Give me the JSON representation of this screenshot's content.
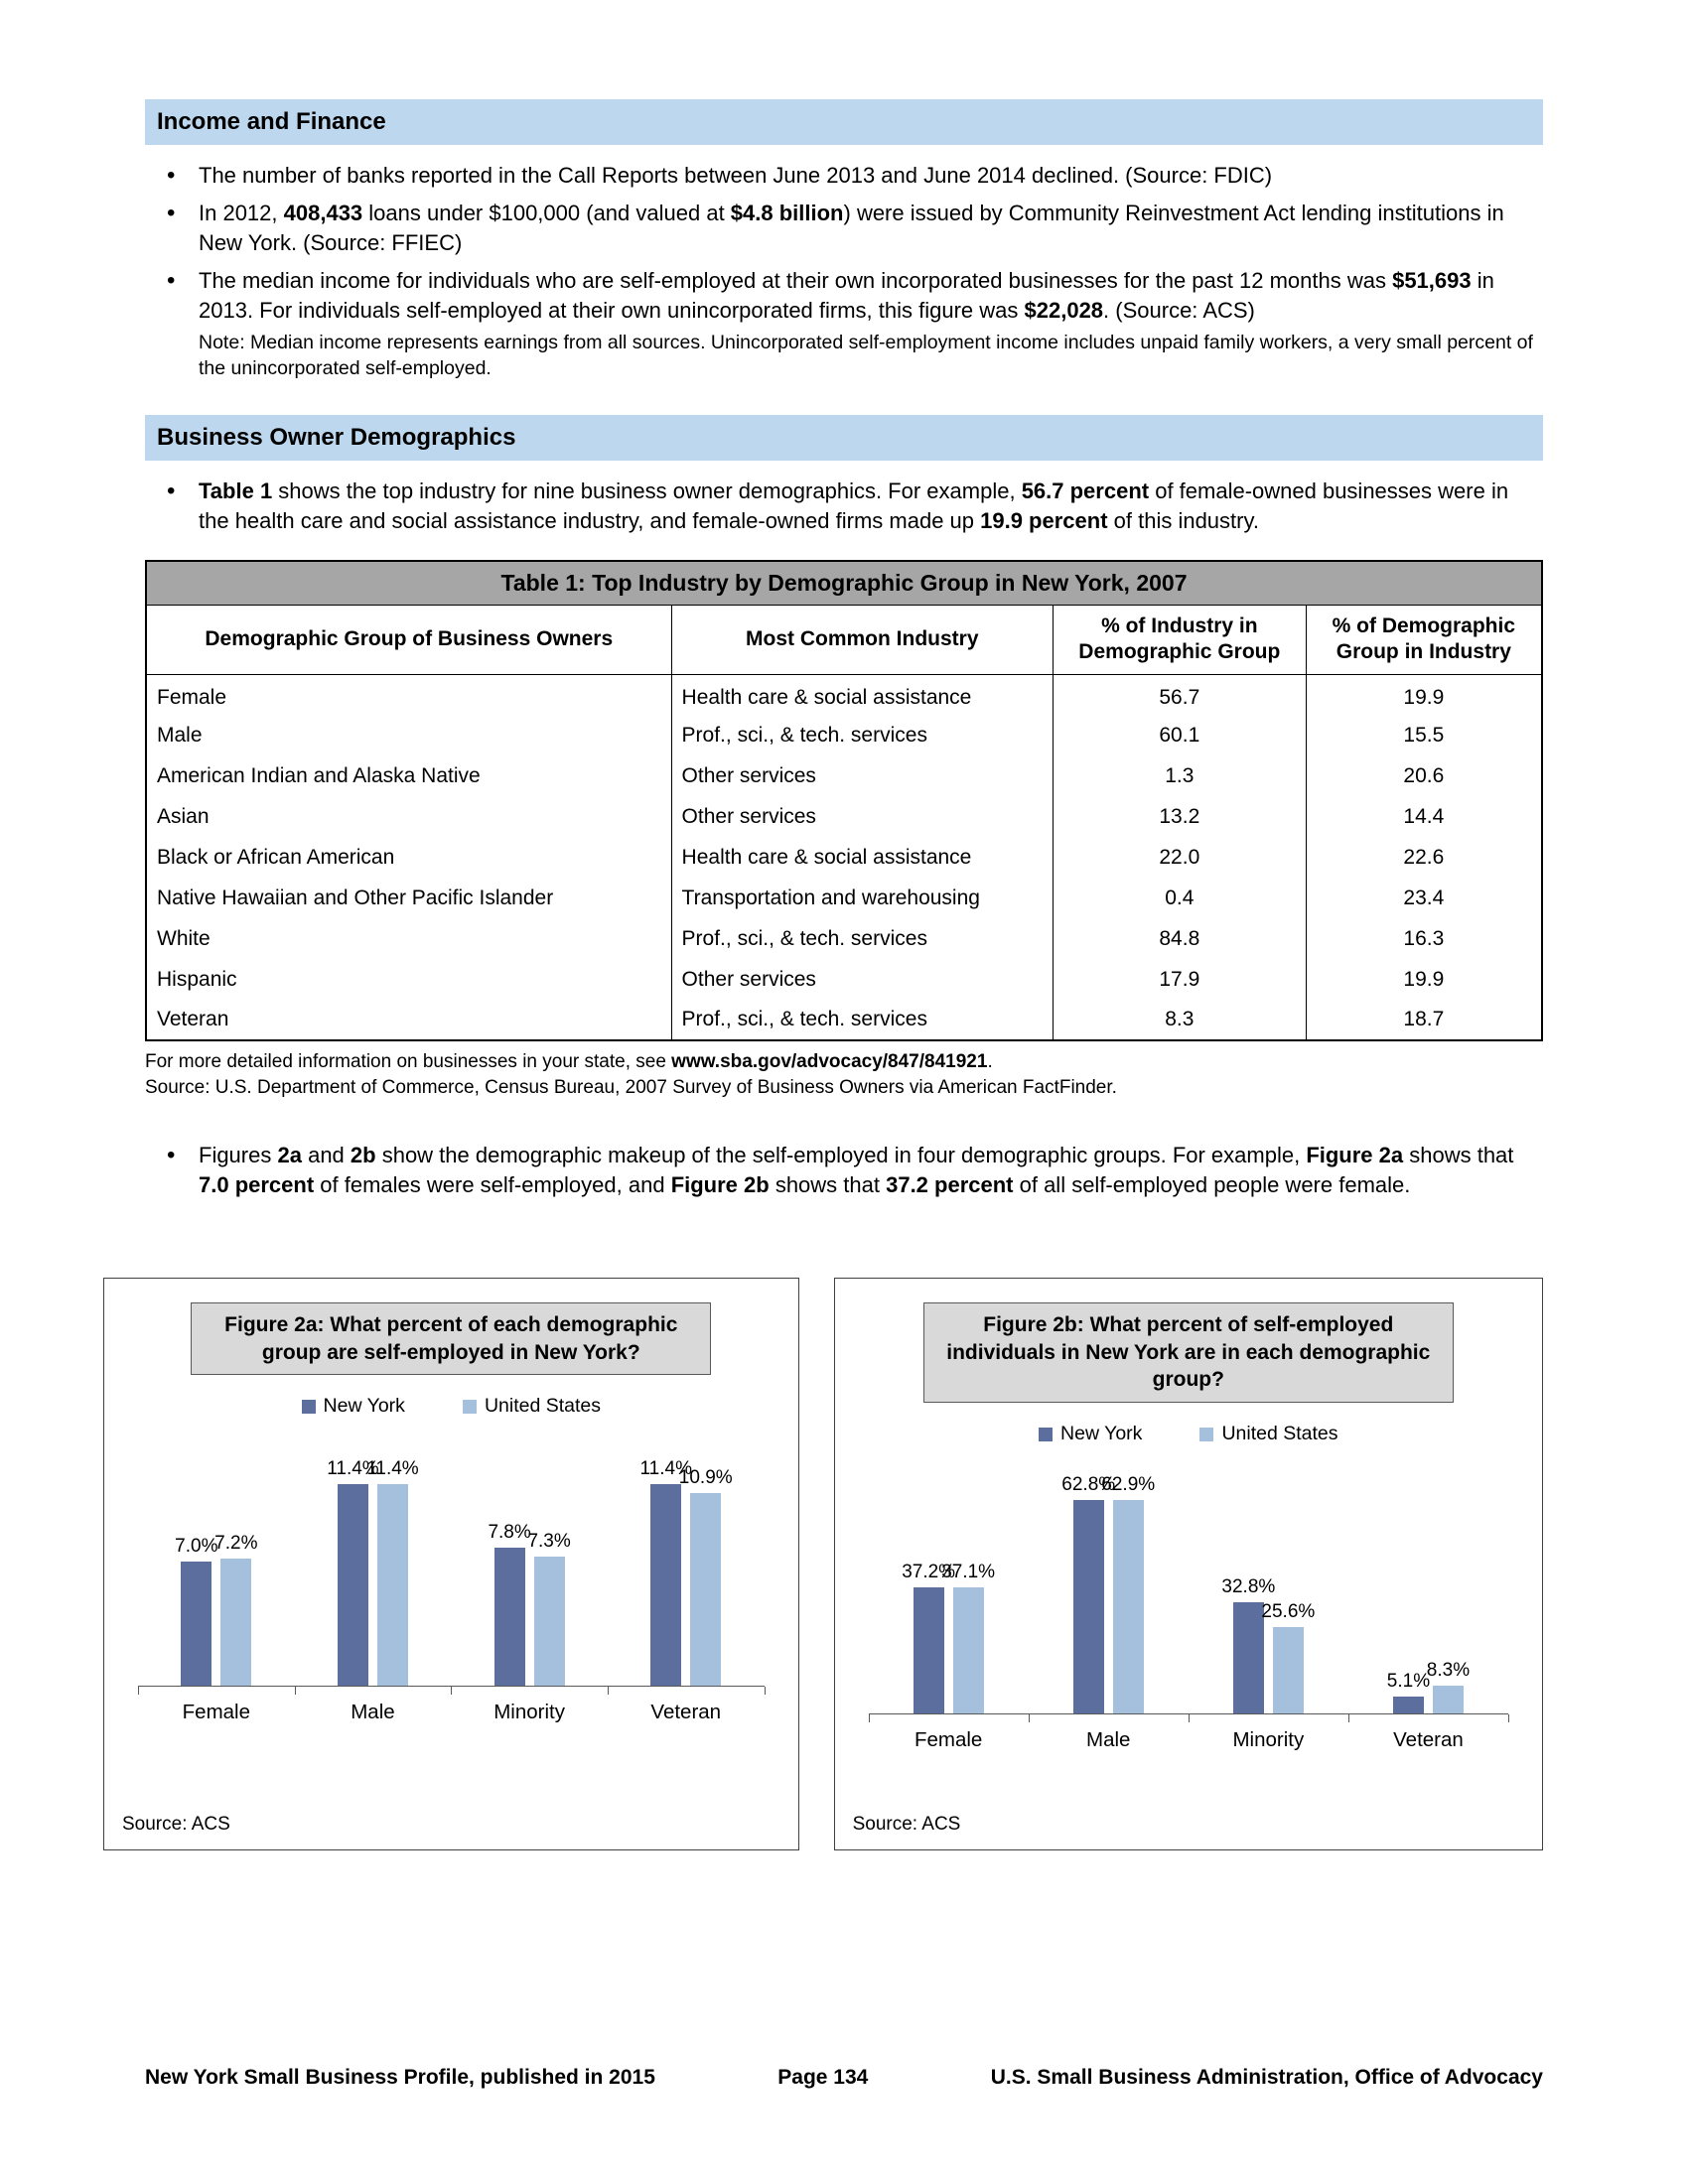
{
  "colors": {
    "section_header_bg": "#bdd7ee",
    "table_title_bg": "#a6a6a6",
    "chart_title_bg": "#d9d9d9",
    "ny_bar": "#5b6e9e",
    "us_bar": "#a4c0dc"
  },
  "sections": {
    "income": {
      "title": "Income and Finance",
      "bullets": [
        [
          {
            "t": "The number of banks reported in the Call Reports between June 2013 and June 2014 declined. (Source: FDIC)"
          }
        ],
        [
          {
            "t": "In 2012, "
          },
          {
            "t": "408,433",
            "b": true
          },
          {
            "t": " loans under $100,000 (and valued at "
          },
          {
            "t": "$4.8 billion",
            "b": true
          },
          {
            "t": ") were issued by Community Reinvestment Act lending institutions in New York. (Source: FFIEC)"
          }
        ],
        [
          {
            "t": "The median income for individuals who are self-employed at their own incorporated businesses for the past 12 months was "
          },
          {
            "t": "$51,693",
            "b": true
          },
          {
            "t": " in 2013. For individuals self-employed at their own unincorporated firms, this figure was "
          },
          {
            "t": "$22,028",
            "b": true
          },
          {
            "t": ".  (Source: ACS)"
          }
        ]
      ],
      "note": "Note: Median income represents earnings from all sources. Unincorporated self-employment income includes unpaid family workers, a very small percent of the unincorporated self-employed."
    },
    "demographics": {
      "title": "Business Owner Demographics",
      "bullets": [
        [
          {
            "t": "Table 1",
            "b": true
          },
          {
            "t": " shows the top industry for nine business owner demographics. For example, "
          },
          {
            "t": "56.7 percent",
            "b": true
          },
          {
            "t": " of female-owned businesses were in the health care and social assistance industry, and female-owned firms made up "
          },
          {
            "t": "19.9 percent",
            "b": true
          },
          {
            "t": " of this industry."
          }
        ]
      ]
    },
    "figures": {
      "bullets": [
        [
          {
            "t": "Figures "
          },
          {
            "t": "2a",
            "b": true
          },
          {
            "t": " and "
          },
          {
            "t": "2b",
            "b": true
          },
          {
            "t": " show the demographic makeup of the self-employed in four demographic groups. For example, "
          },
          {
            "t": "Figure 2a",
            "b": true
          },
          {
            "t": " shows that "
          },
          {
            "t": "7.0 percent",
            "b": true
          },
          {
            "t": " of females were self-employed, and "
          },
          {
            "t": "Figure 2b",
            "b": true
          },
          {
            "t": " shows that "
          },
          {
            "t": "37.2 percent",
            "b": true
          },
          {
            "t": " of all self-employed people were female."
          }
        ]
      ]
    }
  },
  "table1": {
    "title": "Table 1: Top Industry by Demographic Group in New York, 2007",
    "headers": [
      "Demographic Group of Business Owners",
      "Most Common Industry",
      "% of Industry in Demographic Group",
      "% of Demographic Group in Industry"
    ],
    "rows": [
      [
        "Female",
        "Health care & social assistance",
        "56.7",
        "19.9"
      ],
      [
        "Male",
        "Prof., sci., & tech. services",
        "60.1",
        "15.5"
      ],
      [
        "American Indian and Alaska Native",
        "Other services",
        "1.3",
        "20.6"
      ],
      [
        "Asian",
        "Other services",
        "13.2",
        "14.4"
      ],
      [
        "Black or African American",
        "Health care & social assistance",
        "22.0",
        "22.6"
      ],
      [
        "Native Hawaiian and Other Pacific Islander",
        "Transportation and warehousing",
        "0.4",
        "23.4"
      ],
      [
        "White",
        "Prof., sci., & tech. services",
        "84.8",
        "16.3"
      ],
      [
        "Hispanic",
        "Other services",
        "17.9",
        "19.9"
      ],
      [
        "Veteran",
        "Prof., sci., & tech. services",
        "8.3",
        "18.7"
      ]
    ],
    "footnote": [
      {
        "t": "For more detailed information on businesses in your state, see "
      },
      {
        "t": "www.sba.gov/advocacy/847/841921",
        "b": true,
        "link": true
      },
      {
        "t": "."
      }
    ],
    "source": "Source: U.S. Department of Commerce, Census Bureau, 2007 Survey of Business Owners via American FactFinder."
  },
  "chart_data": [
    {
      "id": "fig2a",
      "type": "bar",
      "title": "Figure 2a: What percent of each demographic group are self-employed in New York?",
      "categories": [
        "Female",
        "Male",
        "Minority",
        "Veteran"
      ],
      "series": [
        {
          "name": "New York",
          "color": "#5b6e9e",
          "values": [
            7.0,
            11.4,
            7.8,
            11.4
          ]
        },
        {
          "name": "United States",
          "color": "#a4c0dc",
          "values": [
            7.2,
            11.4,
            7.3,
            10.9
          ]
        }
      ],
      "ymax": 14,
      "ylim": [
        0,
        14
      ],
      "grid": false,
      "legend_position": "top",
      "source": "Source: ACS"
    },
    {
      "id": "fig2b",
      "type": "bar",
      "title": "Figure 2b: What percent of self-employed individuals in New York are in each demographic group?",
      "categories": [
        "Female",
        "Male",
        "Minority",
        "Veteran"
      ],
      "series": [
        {
          "name": "New York",
          "color": "#5b6e9e",
          "values": [
            37.2,
            62.8,
            32.8,
            5.1
          ]
        },
        {
          "name": "United States",
          "color": "#a4c0dc",
          "values": [
            37.1,
            62.9,
            25.6,
            8.3
          ]
        }
      ],
      "ymax": 73,
      "ylim": [
        0,
        73
      ],
      "grid": false,
      "legend_position": "top",
      "source": "Source: ACS"
    }
  ],
  "footer": {
    "left": "New York Small Business Profile, published in 2015",
    "center": "Page 134",
    "right": "U.S. Small Business Administration, Office of Advocacy"
  }
}
